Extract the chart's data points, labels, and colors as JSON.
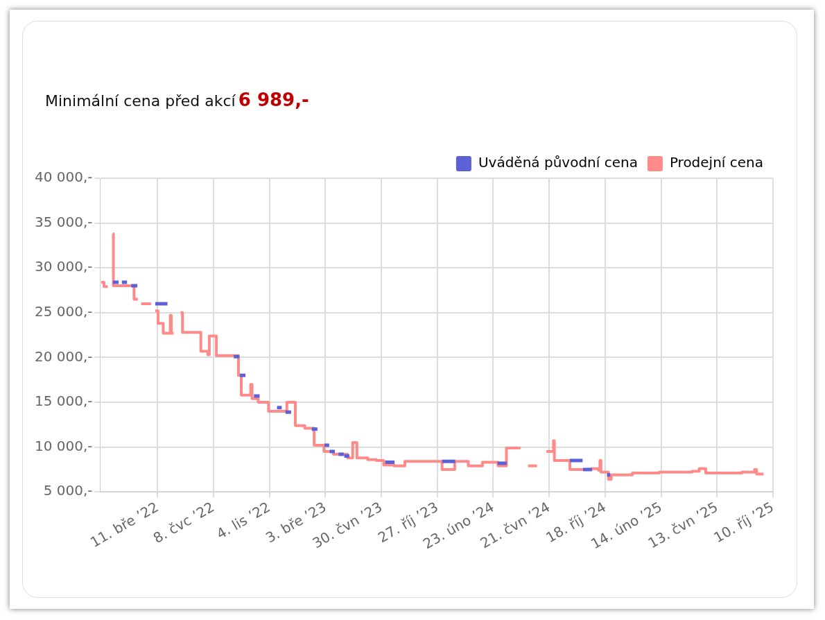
{
  "chart_data": {
    "type": "step",
    "title": "Minimální cena před akcí",
    "subtitle": "6 989,-",
    "xlim": [
      "2021-11-09",
      "2025-10-10"
    ],
    "xticks": [
      {
        "value": "2022-03-11",
        "label": "11. bře ’22"
      },
      {
        "value": "2022-07-08",
        "label": "8. čvc ’22"
      },
      {
        "value": "2022-11-04",
        "label": "4. lis ’22"
      },
      {
        "value": "2023-03-03",
        "label": "3. bře ’23"
      },
      {
        "value": "2023-06-30",
        "label": "30. čvn ’23"
      },
      {
        "value": "2023-10-27",
        "label": "27. říj ’23"
      },
      {
        "value": "2024-02-23",
        "label": "23. úno ’24"
      },
      {
        "value": "2024-06-21",
        "label": "21. čvn ’24"
      },
      {
        "value": "2024-10-18",
        "label": "18. říj ’24"
      },
      {
        "value": "2025-02-14",
        "label": "14. úno ’25"
      },
      {
        "value": "2025-06-13",
        "label": "13. čvn ’25"
      },
      {
        "value": "2025-10-10",
        "label": "10. říj ’25"
      }
    ],
    "ylim": [
      5000,
      40000
    ],
    "yticks": [
      {
        "value": 5000,
        "label": "5 000,-"
      },
      {
        "value": 10000,
        "label": "10 000,-"
      },
      {
        "value": 15000,
        "label": "15 000,-"
      },
      {
        "value": 20000,
        "label": "20 000,-"
      },
      {
        "value": 25000,
        "label": "25 000,-"
      },
      {
        "value": 30000,
        "label": "30 000,-"
      },
      {
        "value": 35000,
        "label": "35 000,-"
      },
      {
        "value": 40000,
        "label": "40 000,-"
      }
    ],
    "grid": true,
    "legend": "top right",
    "marker": "none",
    "line_style": "solid",
    "series": [
      {
        "name": "Uváděná původní cena",
        "color": "#5c62d6",
        "x": [
          "2021-12-06",
          "2021-12-17",
          "2021-12-18",
          "2021-12-25",
          "2022-01-04",
          "2022-01-05",
          "2022-01-14",
          "2022-01-26",
          "2022-01-27",
          "2022-03-06",
          "2022-03-31",
          "2022-04-01",
          "2022-08-20",
          "2022-08-31",
          "2022-09-01",
          "2022-09-02",
          "2022-09-13",
          "2022-09-14",
          "2022-10-02",
          "2022-10-13",
          "2022-10-14",
          "2022-11-20",
          "2022-11-29",
          "2022-11-30",
          "2022-12-08",
          "2022-12-19",
          "2022-12-20",
          "2023-02-02",
          "2023-02-13",
          "2023-02-14",
          "2023-03-01",
          "2023-03-10",
          "2023-03-11",
          "2023-03-12",
          "2023-03-22",
          "2023-03-23",
          "2023-03-31",
          "2023-04-10",
          "2023-04-11",
          "2023-04-12",
          "2023-04-22",
          "2023-04-23",
          "2023-07-08",
          "2023-07-27",
          "2023-07-28",
          "2023-11-06",
          "2023-12-03",
          "2023-12-04",
          "2024-03-03",
          "2024-03-22",
          "2024-03-23",
          "2024-08-04",
          "2024-08-30",
          "2024-08-31",
          "2024-09-01",
          "2024-09-19",
          "2024-09-20",
          "2024-10-22",
          "2024-10-29"
        ],
        "values": [
          28400,
          28400,
          null,
          28400,
          28400,
          null,
          28000,
          28000,
          null,
          26000,
          26000,
          null,
          20100,
          20100,
          null,
          18000,
          18000,
          null,
          15700,
          15700,
          null,
          14400,
          14400,
          null,
          13900,
          13900,
          null,
          12000,
          12000,
          null,
          10200,
          10200,
          null,
          9500,
          9500,
          null,
          9200,
          9200,
          null,
          9000,
          9000,
          null,
          8300,
          8300,
          null,
          8400,
          8400,
          null,
          8200,
          8200,
          null,
          8500,
          8500,
          null,
          7500,
          7500,
          null,
          6900,
          6900
        ]
      },
      {
        "name": "Prodejní cena",
        "color": "#ff8a8a",
        "x": [
          "2021-11-11",
          "2021-11-17",
          "2021-11-24",
          "2021-11-25",
          "2021-12-06",
          "2021-12-07",
          "2022-01-20",
          "2022-01-27",
          "2022-01-28",
          "2022-02-04",
          "2022-02-24",
          "2022-02-25",
          "2022-03-06",
          "2022-03-12",
          "2022-03-23",
          "2022-04-07",
          "2022-04-09",
          "2022-04-13",
          "2022-04-14",
          "2022-04-29",
          "2022-05-03",
          "2022-06-11",
          "2022-06-26",
          "2022-06-29",
          "2022-07-14",
          "2022-08-30",
          "2022-09-05",
          "2022-09-25",
          "2022-09-28",
          "2022-10-11",
          "2022-11-02",
          "2022-12-11",
          "2022-12-29",
          "2023-01-18",
          "2023-02-07",
          "2023-02-28",
          "2023-03-20",
          "2023-04-19",
          "2023-04-30",
          "2023-05-09",
          "2023-06-01",
          "2023-06-19",
          "2023-07-05",
          "2023-07-27",
          "2023-08-19",
          "2023-11-06",
          "2023-12-03",
          "2024-01-01",
          "2024-01-31",
          "2024-03-04",
          "2024-03-22",
          "2024-04-20",
          "2024-04-21",
          "2024-05-07",
          "2024-05-25",
          "2024-05-26",
          "2024-06-15",
          "2024-06-30",
          "2024-07-02",
          "2024-08-04",
          "2024-09-19",
          "2024-10-04",
          "2024-10-07",
          "2024-10-09",
          "2024-10-25",
          "2024-10-31",
          "2024-12-15",
          "2025-02-10",
          "2025-04-21",
          "2025-05-06",
          "2025-05-20",
          "2025-08-05",
          "2025-09-01",
          "2025-09-05",
          "2025-09-20"
        ],
        "values": [
          28400,
          27900,
          27900,
          null,
          33800,
          28000,
          26500,
          26500,
          null,
          26000,
          26000,
          null,
          25200,
          23800,
          22700,
          24700,
          22700,
          22700,
          null,
          25000,
          22800,
          20700,
          20300,
          22400,
          20200,
          18000,
          15800,
          17000,
          15400,
          15000,
          14000,
          15000,
          12400,
          12100,
          10200,
          9500,
          9200,
          8800,
          10500,
          8800,
          8600,
          8500,
          8000,
          7900,
          8400,
          7500,
          8400,
          7900,
          8300,
          7900,
          9900,
          9900,
          null,
          7900,
          7900,
          null,
          9500,
          10700,
          8500,
          7500,
          7600,
          7400,
          8500,
          7200,
          6400,
          6900,
          7100,
          7200,
          7300,
          7600,
          7100,
          7200,
          7500,
          7000,
          7000
        ]
      }
    ]
  }
}
